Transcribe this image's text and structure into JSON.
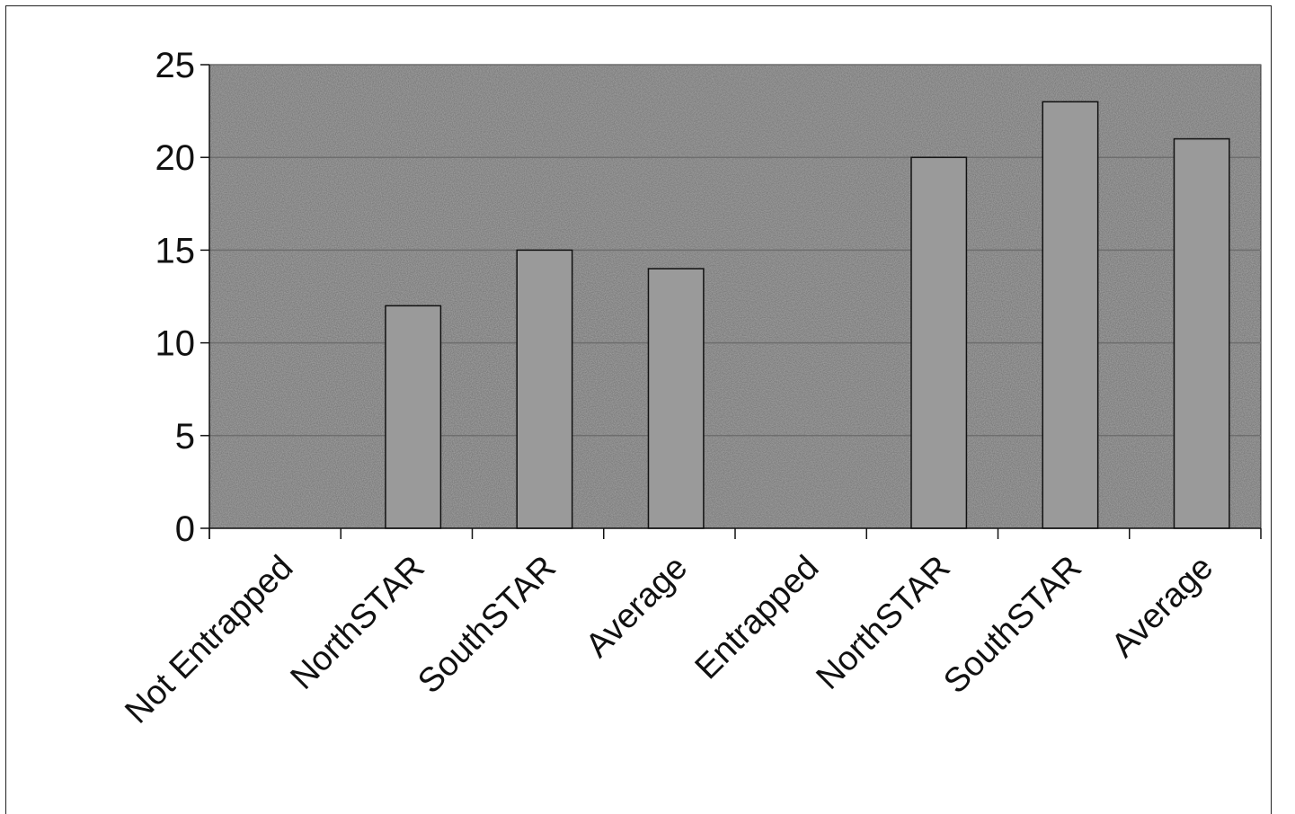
{
  "chart_data": {
    "type": "bar",
    "categories": [
      "Not Entrapped",
      "NorthSTAR",
      "SouthSTAR",
      "Average",
      "Entrapped",
      "NorthSTAR",
      "SouthSTAR",
      "Average"
    ],
    "values": [
      null,
      12,
      15,
      14,
      null,
      20,
      23,
      21
    ],
    "title": "",
    "xlabel": "",
    "ylabel": "",
    "ylim": [
      0,
      25
    ],
    "yticks": [
      0,
      5,
      10,
      15,
      20,
      25
    ],
    "grid": true,
    "legend": "none",
    "colors": {
      "plot_background": "#a9a9a9",
      "bar_fill": "#9a9a9a",
      "bar_stroke": "#111111",
      "gridline": "#6e6e6e"
    }
  }
}
